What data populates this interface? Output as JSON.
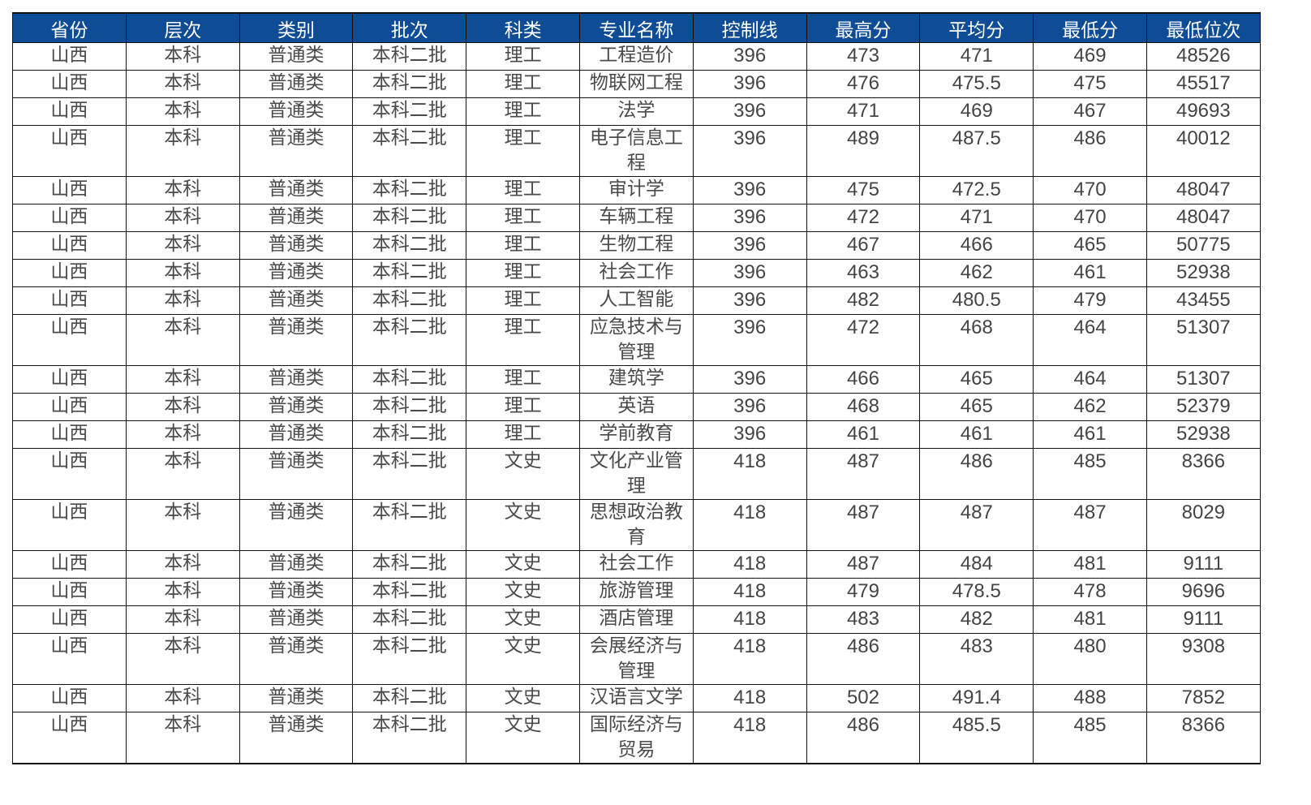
{
  "headers": [
    "省份",
    "层次",
    "类别",
    "批次",
    "科类",
    "专业名称",
    "控制线",
    "最高分",
    "平均分",
    "最低分",
    "最低位次"
  ],
  "rows": [
    {
      "province": "山西",
      "level": "本科",
      "category": "普通类",
      "batch": "本科二批",
      "subject": "理工",
      "major": "工程造价",
      "control_line": "396",
      "max_score": "473",
      "avg_score": "471",
      "min_score": "469",
      "min_rank": "48526"
    },
    {
      "province": "山西",
      "level": "本科",
      "category": "普通类",
      "batch": "本科二批",
      "subject": "理工",
      "major": "物联网工程",
      "control_line": "396",
      "max_score": "476",
      "avg_score": "475.5",
      "min_score": "475",
      "min_rank": "45517"
    },
    {
      "province": "山西",
      "level": "本科",
      "category": "普通类",
      "batch": "本科二批",
      "subject": "理工",
      "major": "法学",
      "control_line": "396",
      "max_score": "471",
      "avg_score": "469",
      "min_score": "467",
      "min_rank": "49693"
    },
    {
      "province": "山西",
      "level": "本科",
      "category": "普通类",
      "batch": "本科二批",
      "subject": "理工",
      "major": "电子信息工程",
      "control_line": "396",
      "max_score": "489",
      "avg_score": "487.5",
      "min_score": "486",
      "min_rank": "40012"
    },
    {
      "province": "山西",
      "level": "本科",
      "category": "普通类",
      "batch": "本科二批",
      "subject": "理工",
      "major": "审计学",
      "control_line": "396",
      "max_score": "475",
      "avg_score": "472.5",
      "min_score": "470",
      "min_rank": "48047"
    },
    {
      "province": "山西",
      "level": "本科",
      "category": "普通类",
      "batch": "本科二批",
      "subject": "理工",
      "major": "车辆工程",
      "control_line": "396",
      "max_score": "472",
      "avg_score": "471",
      "min_score": "470",
      "min_rank": "48047"
    },
    {
      "province": "山西",
      "level": "本科",
      "category": "普通类",
      "batch": "本科二批",
      "subject": "理工",
      "major": "生物工程",
      "control_line": "396",
      "max_score": "467",
      "avg_score": "466",
      "min_score": "465",
      "min_rank": "50775"
    },
    {
      "province": "山西",
      "level": "本科",
      "category": "普通类",
      "batch": "本科二批",
      "subject": "理工",
      "major": "社会工作",
      "control_line": "396",
      "max_score": "463",
      "avg_score": "462",
      "min_score": "461",
      "min_rank": "52938"
    },
    {
      "province": "山西",
      "level": "本科",
      "category": "普通类",
      "batch": "本科二批",
      "subject": "理工",
      "major": "人工智能",
      "control_line": "396",
      "max_score": "482",
      "avg_score": "480.5",
      "min_score": "479",
      "min_rank": "43455"
    },
    {
      "province": "山西",
      "level": "本科",
      "category": "普通类",
      "batch": "本科二批",
      "subject": "理工",
      "major": "应急技术与管理",
      "control_line": "396",
      "max_score": "472",
      "avg_score": "468",
      "min_score": "464",
      "min_rank": "51307"
    },
    {
      "province": "山西",
      "level": "本科",
      "category": "普通类",
      "batch": "本科二批",
      "subject": "理工",
      "major": "建筑学",
      "control_line": "396",
      "max_score": "466",
      "avg_score": "465",
      "min_score": "464",
      "min_rank": "51307"
    },
    {
      "province": "山西",
      "level": "本科",
      "category": "普通类",
      "batch": "本科二批",
      "subject": "理工",
      "major": "英语",
      "control_line": "396",
      "max_score": "468",
      "avg_score": "465",
      "min_score": "462",
      "min_rank": "52379"
    },
    {
      "province": "山西",
      "level": "本科",
      "category": "普通类",
      "batch": "本科二批",
      "subject": "理工",
      "major": "学前教育",
      "control_line": "396",
      "max_score": "461",
      "avg_score": "461",
      "min_score": "461",
      "min_rank": "52938"
    },
    {
      "province": "山西",
      "level": "本科",
      "category": "普通类",
      "batch": "本科二批",
      "subject": "文史",
      "major": "文化产业管理",
      "control_line": "418",
      "max_score": "487",
      "avg_score": "486",
      "min_score": "485",
      "min_rank": "8366"
    },
    {
      "province": "山西",
      "level": "本科",
      "category": "普通类",
      "batch": "本科二批",
      "subject": "文史",
      "major": "思想政治教育",
      "control_line": "418",
      "max_score": "487",
      "avg_score": "487",
      "min_score": "487",
      "min_rank": "8029"
    },
    {
      "province": "山西",
      "level": "本科",
      "category": "普通类",
      "batch": "本科二批",
      "subject": "文史",
      "major": "社会工作",
      "control_line": "418",
      "max_score": "487",
      "avg_score": "484",
      "min_score": "481",
      "min_rank": "9111"
    },
    {
      "province": "山西",
      "level": "本科",
      "category": "普通类",
      "batch": "本科二批",
      "subject": "文史",
      "major": "旅游管理",
      "control_line": "418",
      "max_score": "479",
      "avg_score": "478.5",
      "min_score": "478",
      "min_rank": "9696"
    },
    {
      "province": "山西",
      "level": "本科",
      "category": "普通类",
      "batch": "本科二批",
      "subject": "文史",
      "major": "酒店管理",
      "control_line": "418",
      "max_score": "483",
      "avg_score": "482",
      "min_score": "481",
      "min_rank": "9111"
    },
    {
      "province": "山西",
      "level": "本科",
      "category": "普通类",
      "batch": "本科二批",
      "subject": "文史",
      "major": "会展经济与管理",
      "control_line": "418",
      "max_score": "486",
      "avg_score": "483",
      "min_score": "480",
      "min_rank": "9308"
    },
    {
      "province": "山西",
      "level": "本科",
      "category": "普通类",
      "batch": "本科二批",
      "subject": "文史",
      "major": "汉语言文学",
      "control_line": "418",
      "max_score": "502",
      "avg_score": "491.4",
      "min_score": "488",
      "min_rank": "7852"
    },
    {
      "province": "山西",
      "level": "本科",
      "category": "普通类",
      "batch": "本科二批",
      "subject": "文史",
      "major": "国际经济与贸易",
      "control_line": "418",
      "max_score": "486",
      "avg_score": "485.5",
      "min_score": "485",
      "min_rank": "8366"
    }
  ]
}
